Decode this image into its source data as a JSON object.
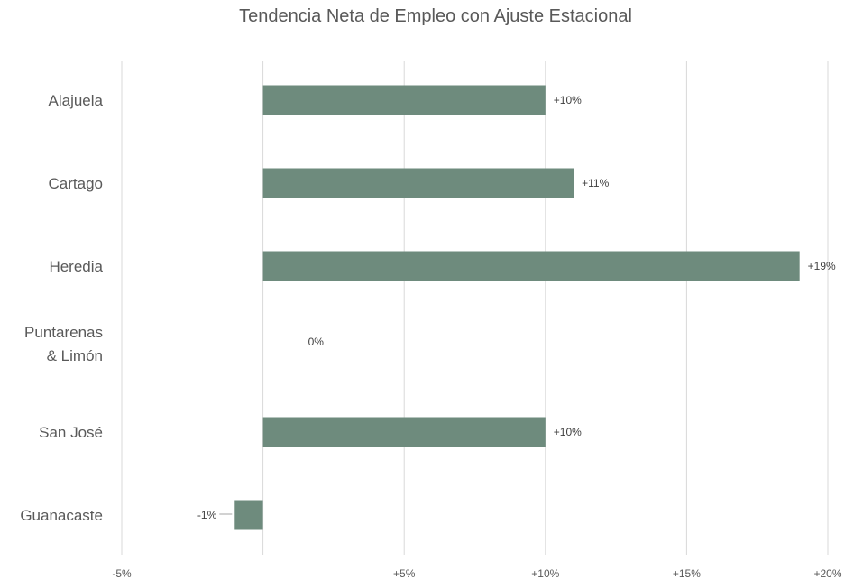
{
  "chart_data": {
    "type": "bar",
    "orientation": "horizontal",
    "title": "Tendencia Neta de Empleo con Ajuste Estacional",
    "categories": [
      "Alajuela",
      "Cartago",
      "Heredia",
      "Puntarenas & Limón",
      "San José",
      "Guanacaste"
    ],
    "category_lines": [
      [
        "Alajuela"
      ],
      [
        "Cartago"
      ],
      [
        "Heredia"
      ],
      [
        "Puntarenas",
        "& Limón"
      ],
      [
        "San José"
      ],
      [
        "Guanacaste"
      ]
    ],
    "values": [
      10,
      11,
      19,
      0,
      10,
      -1
    ],
    "data_labels": [
      "+10%",
      "+11%",
      "+19%",
      "0%",
      "+10%",
      "-1%"
    ],
    "xlim": [
      -5,
      20
    ],
    "x_ticks": [
      -5,
      0,
      5,
      10,
      15,
      20
    ],
    "x_tick_labels": [
      "-5%",
      "",
      "+5%",
      "+10%",
      "+15%",
      "+20%"
    ],
    "xlabel": "",
    "ylabel": "",
    "grid": true,
    "bar_color": "#6e8b7d"
  }
}
